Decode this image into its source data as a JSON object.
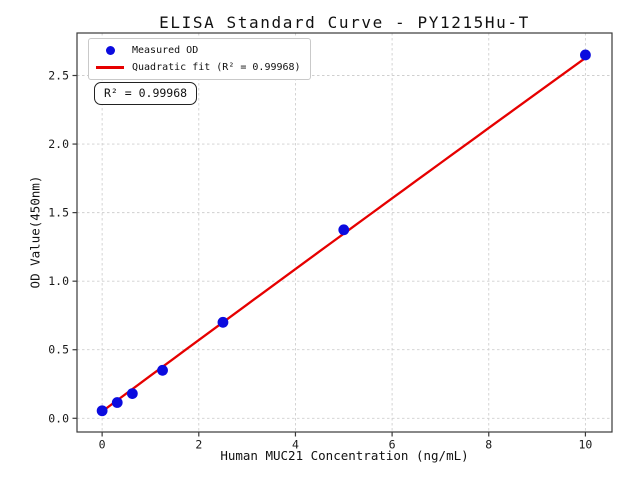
{
  "chart_data": {
    "type": "scatter",
    "title": "ELISA Standard Curve - PY1215Hu-T",
    "xlabel": "Human MUC21 Concentration (ng/mL)",
    "ylabel": "OD Value(450nm)",
    "xlim": [
      -0.52,
      10.55
    ],
    "ylim": [
      -0.1,
      2.81
    ],
    "xticks": {
      "values": [
        0,
        2,
        4,
        6,
        8,
        10
      ],
      "labels": [
        "0",
        "2",
        "4",
        "6",
        "8",
        "10"
      ]
    },
    "yticks": {
      "values": [
        0.0,
        0.5,
        1.0,
        1.5,
        2.0,
        2.5
      ],
      "labels": [
        "0.0",
        "0.5",
        "1.0",
        "1.5",
        "2.0",
        "2.5"
      ]
    },
    "grid": true,
    "legend_position": "upper left",
    "colors": {
      "marker": "#0b0bdf",
      "fit_line": "#e60000",
      "grid": "#cfcfcf",
      "spine": "#3a3a3a",
      "tick_text": "#1a1a1a"
    },
    "series": [
      {
        "name": "Measured OD",
        "type": "scatter",
        "x": [
          0,
          0.3125,
          0.625,
          1.25,
          2.5,
          5,
          10
        ],
        "y": [
          0.055,
          0.115,
          0.18,
          0.35,
          0.7,
          1.375,
          2.65
        ]
      },
      {
        "name": "Quadratic fit",
        "type": "line",
        "fit_coefficients": {
          "a": -0.0003,
          "b": 0.2608,
          "c": 0.05
        },
        "x_range": [
          0,
          10
        ],
        "r_squared": 0.99968
      }
    ],
    "legend": {
      "items": [
        {
          "label": "Measured OD",
          "marker": "dot",
          "color": "#0b0bdf"
        },
        {
          "label": "Quadratic fit (R² = 0.99968)",
          "marker": "line",
          "color": "#e60000"
        }
      ]
    },
    "annotation": {
      "text": "R² = 0.99968"
    }
  }
}
